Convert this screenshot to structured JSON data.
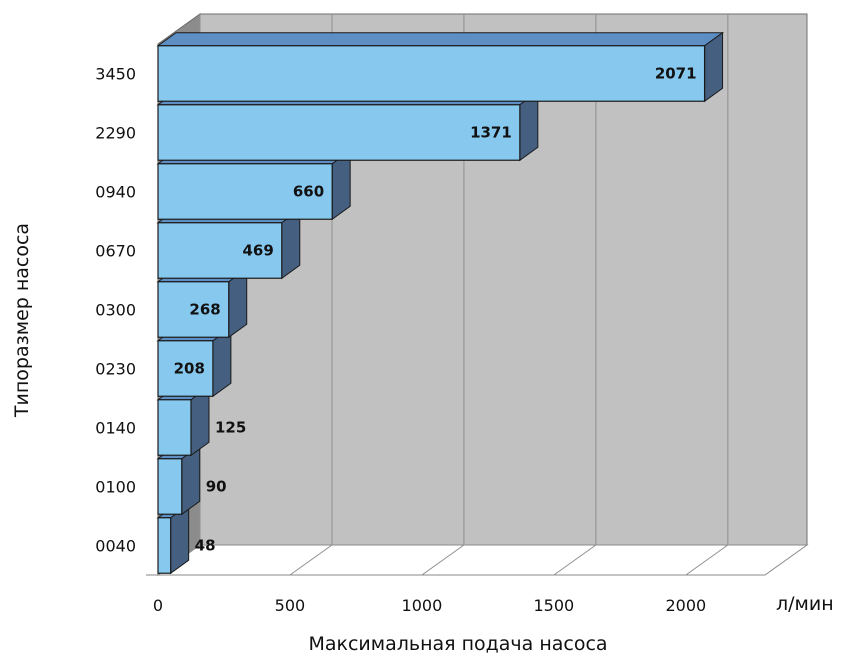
{
  "chart_data": {
    "type": "bar",
    "orientation": "horizontal",
    "categories": [
      "0040",
      "0100",
      "0140",
      "0230",
      "0300",
      "0670",
      "0940",
      "2290",
      "3450"
    ],
    "values": [
      48,
      90,
      125,
      208,
      268,
      469,
      660,
      1371,
      2071
    ],
    "title": "",
    "xlabel": "Максимальная подача насоса",
    "ylabel": "Типоразмер насоса",
    "x_unit": "л/мин",
    "x_ticks": [
      0,
      500,
      1000,
      1500,
      2000
    ],
    "xlim": [
      0,
      2300
    ],
    "grid": true,
    "style": "3d",
    "colors": {
      "bar_front": "#87c8ef",
      "bar_top": "#5e8fc4",
      "bar_side": "#445f7f",
      "back_wall": "#c1c1c1",
      "left_wall": "#8c8c8c",
      "floor": "#ffffff"
    }
  }
}
